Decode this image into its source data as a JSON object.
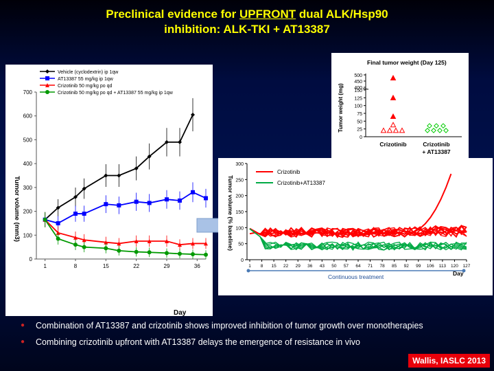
{
  "slide": {
    "title_line1_pre": "Preclinical evidence for ",
    "title_line1_u": "UPFRONT",
    "title_line1_post": " dual ALK/Hsp90",
    "title_line2": "inhibition: ALK-TKI + AT13387",
    "bullets": [
      "Combination of AT13387 and crizotinib shows improved inhibition of tumor growth over monotherapies",
      "Combining crizotinib upfront with AT13387 delays the emergence of resistance in vivo"
    ],
    "credit": "Wallis, IASLC 2013",
    "colors": {
      "title": "#ffff00",
      "credit_bg": "#e8000a",
      "bullet_dot": "#cc2222"
    }
  },
  "chart_data": [
    {
      "type": "line",
      "title": "",
      "xlabel": "Day",
      "ylabel": "Tumor volume (mm3)",
      "x_ticks": [
        1,
        8,
        15,
        22,
        29,
        36
      ],
      "y_ticks": [
        0,
        100,
        200,
        300,
        400,
        500,
        600,
        700
      ],
      "ylim": [
        0,
        700
      ],
      "legend_position": "top-left",
      "series": [
        {
          "name": "Vehicle (cyclodextrin) ip 1qw",
          "color": "#000000",
          "marker": "diamond",
          "x": [
            1,
            4,
            8,
            10,
            15,
            18,
            22,
            25,
            29,
            32,
            35
          ],
          "y": [
            165,
            215,
            260,
            295,
            350,
            350,
            380,
            430,
            490,
            490,
            605
          ]
        },
        {
          "name": "AT13387 55 mg/kg ip 1qw",
          "color": "#0000ff",
          "marker": "square",
          "x": [
            1,
            4,
            8,
            10,
            15,
            18,
            22,
            25,
            29,
            32,
            35,
            38
          ],
          "y": [
            165,
            150,
            190,
            190,
            230,
            225,
            240,
            235,
            250,
            245,
            280,
            255
          ]
        },
        {
          "name": "Crizotinib 50 mg/kg po qd",
          "color": "#ff0000",
          "marker": "triangle",
          "x": [
            1,
            4,
            8,
            10,
            15,
            18,
            22,
            25,
            29,
            32,
            35,
            38
          ],
          "y": [
            165,
            110,
            90,
            80,
            70,
            65,
            75,
            75,
            75,
            60,
            65,
            65
          ]
        },
        {
          "name": "Crizotinib 50 mg/kg po qd + AT13387 55 mg/kg ip 1qw",
          "color": "#009900",
          "marker": "circle",
          "x": [
            1,
            4,
            8,
            10,
            15,
            18,
            22,
            25,
            29,
            32,
            35,
            38
          ],
          "y": [
            165,
            85,
            60,
            50,
            45,
            35,
            30,
            28,
            25,
            22,
            20,
            18
          ]
        }
      ]
    },
    {
      "type": "scatter",
      "title": "Final tumor weight (Day 125)",
      "ylabel": "Tumor weight (mg)",
      "categories": [
        "Crizotinib",
        "Crizotinib + AT13387"
      ],
      "y_ticks": [
        "0",
        "25",
        "50",
        "75",
        "100",
        "125",
        "150",
        "400",
        "450",
        "500"
      ],
      "series": [
        {
          "name": "Crizotinib",
          "color": "#ff0000",
          "values": [
            475,
            125,
            65,
            38,
            20,
            20,
            20,
            20
          ]
        },
        {
          "name": "Crizotinib + AT13387",
          "color": "#00cc00",
          "values": [
            35,
            35,
            35,
            20,
            20,
            20,
            20
          ]
        }
      ]
    },
    {
      "type": "line",
      "title": "",
      "xlabel": "Day",
      "ylabel": "Tumor volume (% baseline)",
      "x_ticks": [
        1,
        8,
        15,
        22,
        29,
        36,
        43,
        50,
        57,
        64,
        71,
        78,
        85,
        92,
        99,
        106,
        113,
        120,
        127
      ],
      "y_ticks": [
        0,
        50,
        100,
        150,
        200,
        250,
        300
      ],
      "ylim": [
        0,
        300
      ],
      "legend_position": "top-left",
      "annotation": "Continuous treatment",
      "series": [
        {
          "name": "Crizotinib",
          "color": "#ff0000"
        },
        {
          "name": "Crizotinib+AT13387",
          "color": "#00aa44"
        }
      ]
    }
  ]
}
